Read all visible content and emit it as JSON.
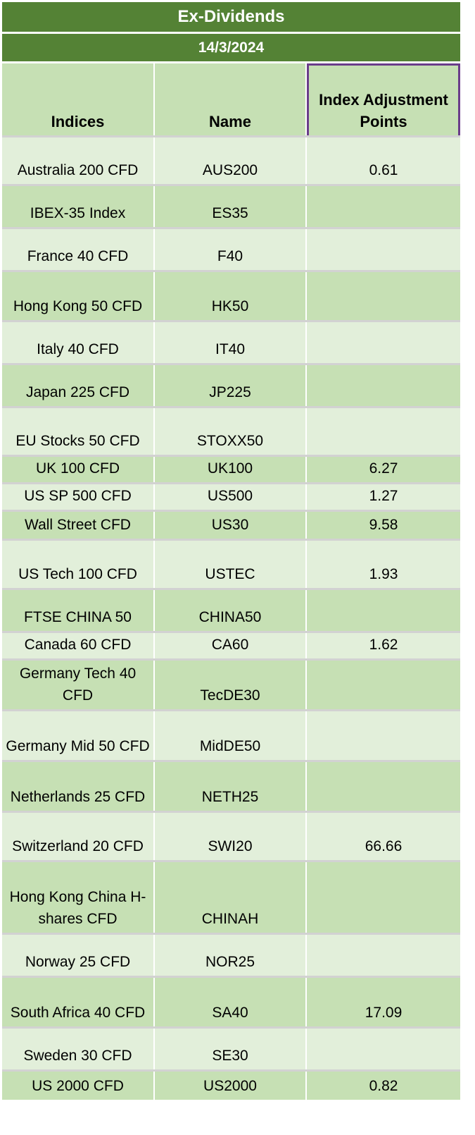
{
  "title": "Ex-Dividends",
  "date": "14/3/2024",
  "headers": {
    "indices": "Indices",
    "name": "Name",
    "points": "Index Adjustment Points"
  },
  "rows": [
    {
      "index": "Australia 200 CFD",
      "name": "AUS200",
      "points": "0.61"
    },
    {
      "index": "IBEX-35 Index",
      "name": "ES35",
      "points": ""
    },
    {
      "index": "France 40 CFD",
      "name": "F40",
      "points": ""
    },
    {
      "index": "Hong Kong 50 CFD",
      "name": "HK50",
      "points": ""
    },
    {
      "index": "Italy 40 CFD",
      "name": "IT40",
      "points": ""
    },
    {
      "index": "Japan 225 CFD",
      "name": "JP225",
      "points": ""
    },
    {
      "index": "EU Stocks 50 CFD",
      "name": "STOXX50",
      "points": ""
    },
    {
      "index": "UK 100 CFD",
      "name": "UK100",
      "points": "6.27"
    },
    {
      "index": "US SP 500 CFD",
      "name": "US500",
      "points": "1.27"
    },
    {
      "index": "Wall Street CFD",
      "name": "US30",
      "points": "9.58"
    },
    {
      "index": "US Tech 100 CFD",
      "name": "USTEC",
      "points": "1.93"
    },
    {
      "index": "FTSE CHINA 50",
      "name": "CHINA50",
      "points": ""
    },
    {
      "index": "Canada 60 CFD",
      "name": "CA60",
      "points": "1.62"
    },
    {
      "index": "Germany Tech 40 CFD",
      "name": "TecDE30",
      "points": ""
    },
    {
      "index": "Germany Mid 50 CFD",
      "name": "MidDE50",
      "points": ""
    },
    {
      "index": "Netherlands 25 CFD",
      "name": "NETH25",
      "points": ""
    },
    {
      "index": "Switzerland 20 CFD",
      "name": "SWI20",
      "points": "66.66"
    },
    {
      "index": "Hong Kong China H-shares CFD",
      "name": "CHINAH",
      "points": ""
    },
    {
      "index": "Norway 25 CFD",
      "name": "NOR25",
      "points": ""
    },
    {
      "index": "South Africa 40 CFD",
      "name": "SA40",
      "points": "17.09"
    },
    {
      "index": "Sweden 30 CFD",
      "name": "SE30",
      "points": ""
    },
    {
      "index": "US 2000 CFD",
      "name": "US2000",
      "points": "0.82"
    }
  ]
}
